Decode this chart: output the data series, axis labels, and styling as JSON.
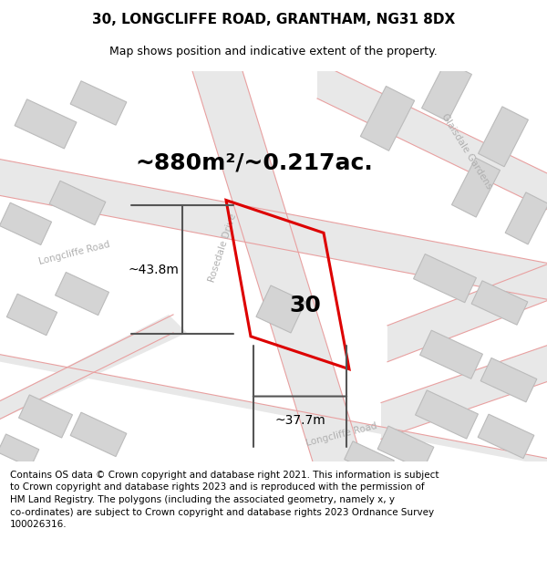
{
  "title": "30, LONGCLIFFE ROAD, GRANTHAM, NG31 8DX",
  "subtitle": "Map shows position and indicative extent of the property.",
  "area_label": "~880m²/~0.217ac.",
  "width_label": "~37.7m",
  "height_label": "~43.8m",
  "number_label": "30",
  "copyright_text": "Contains OS data © Crown copyright and database right 2021. This information is subject\nto Crown copyright and database rights 2023 and is reproduced with the permission of\nHM Land Registry. The polygons (including the associated geometry, namely x, y\nco-ordinates) are subject to Crown copyright and database rights 2023 Ordnance Survey\n100026316.",
  "background_color": "#f0f0f0",
  "road_outline_color": "#e8a0a0",
  "building_color": "#d4d4d4",
  "building_edge_color": "#bbbbbb",
  "property_color": "#dd0000",
  "dim_line_color": "#555555",
  "road_label_color": "#b0b0b0",
  "title_fontsize": 11,
  "subtitle_fontsize": 9,
  "area_fontsize": 18,
  "number_fontsize": 18,
  "dim_fontsize": 10,
  "copyright_fontsize": 7.5
}
